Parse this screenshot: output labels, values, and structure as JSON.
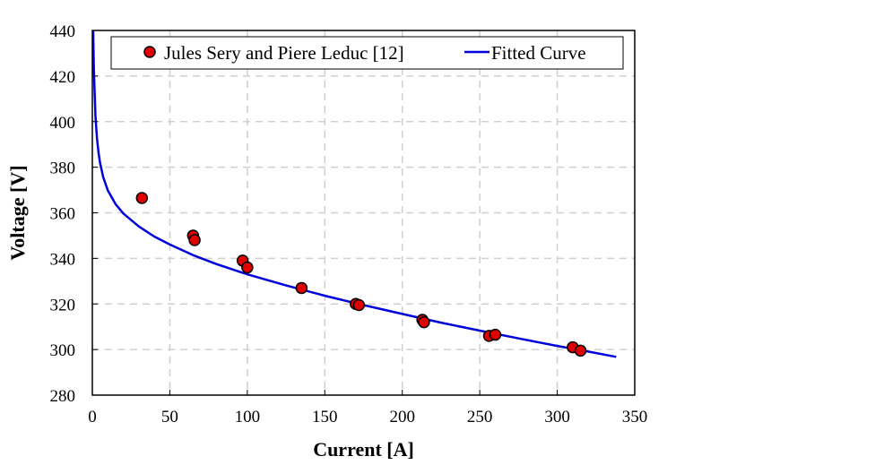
{
  "chart_data": {
    "type": "scatter",
    "title": "",
    "xlabel": "Current [A]",
    "ylabel": "Voltage [V]",
    "xlim": [
      0,
      350
    ],
    "ylim": [
      280,
      440
    ],
    "xticks": [
      0,
      50,
      100,
      150,
      200,
      250,
      300,
      350
    ],
    "yticks": [
      280,
      300,
      320,
      340,
      360,
      380,
      400,
      420,
      440
    ],
    "grid": true,
    "legend_position": "top",
    "series": [
      {
        "name": "Jules Sery and Piere Leduc [12]",
        "kind": "scatter",
        "color": "#e00000",
        "x": [
          32,
          65,
          66,
          97,
          100,
          135,
          170,
          172,
          213,
          214,
          256,
          260,
          310,
          315
        ],
        "y": [
          366.5,
          350,
          348,
          339,
          336,
          327,
          320,
          319.5,
          313,
          312,
          306,
          306.5,
          301,
          299.5
        ]
      },
      {
        "name": "Fitted Curve",
        "kind": "line",
        "color": "#0000dd",
        "x": [
          0.5,
          1,
          2,
          3,
          4,
          5,
          7,
          10,
          15,
          20,
          30,
          40,
          50,
          65,
          80,
          100,
          125,
          150,
          175,
          200,
          225,
          250,
          275,
          300,
          320,
          338
        ],
        "y": [
          440,
          422.7,
          402.3,
          392.6,
          386.4,
          381.9,
          375.7,
          369.8,
          363.8,
          359.7,
          354,
          349.6,
          346.1,
          341.4,
          337.5,
          333,
          328.1,
          323.6,
          319.5,
          315.6,
          311.8,
          308.3,
          304.9,
          301.6,
          299.1,
          296.8
        ]
      }
    ]
  }
}
